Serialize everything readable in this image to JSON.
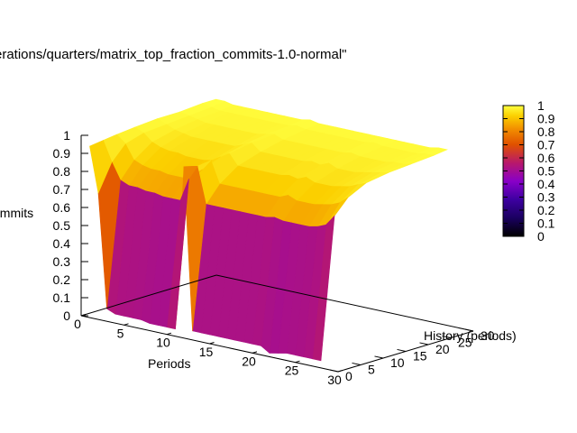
{
  "chart_data": {
    "type": "surface3d",
    "title": "erations/quarters/matrix_top_fraction_commits-1.0-normal\"",
    "xlabel": "Periods",
    "ylabel": "History (periods)",
    "zlabel": "ommits",
    "xlim": [
      0,
      30
    ],
    "ylim": [
      0,
      30
    ],
    "zlim": [
      0,
      1
    ],
    "x_ticks": [
      "0",
      "5",
      "10",
      "15",
      "20",
      "25",
      "30"
    ],
    "y_ticks": [
      "0",
      "5",
      "10",
      "15",
      "20",
      "25",
      "30"
    ],
    "z_ticks": [
      "0",
      "0.1",
      "0.2",
      "0.3",
      "0.4",
      "0.5",
      "0.6",
      "0.7",
      "0.8",
      "0.9",
      "1"
    ],
    "colorbar_ticks": [
      "0",
      "0.1",
      "0.2",
      "0.3",
      "0.4",
      "0.5",
      "0.6",
      "0.7",
      "0.8",
      "0.9",
      "1"
    ],
    "colorbar_range": [
      0,
      1
    ],
    "palette": [
      "#000000",
      "#3d00a0",
      "#8800c8",
      "#b8186c",
      "#e05000",
      "#f28e00",
      "#fbd000",
      "#ffff40"
    ],
    "grid": false,
    "series": [
      {
        "name": "",
        "history": 0,
        "x": [
          1,
          2,
          3,
          4,
          5,
          6,
          7,
          8,
          9,
          10,
          11,
          12,
          13,
          14,
          15,
          16,
          17,
          18,
          19,
          20,
          21,
          22,
          23,
          24,
          25,
          26,
          27,
          28
        ],
        "values": [
          0.95,
          0.7,
          0.07,
          0.05,
          0.05,
          0.05,
          0.05,
          0.04,
          0.04,
          0.04,
          0.04,
          0.95,
          0.05,
          0.05,
          0.05,
          0.05,
          0.05,
          0.05,
          0.05,
          0.05,
          0.05,
          0.02,
          0.03,
          0.04,
          0.04,
          0.04,
          0.04,
          0.04
        ]
      },
      {
        "name": "",
        "history": 3,
        "x": [
          1,
          2,
          3,
          4,
          5,
          6,
          7,
          8,
          9,
          10,
          11,
          12,
          13,
          14,
          15,
          16,
          17,
          18,
          19,
          20,
          21,
          22,
          23,
          24,
          25,
          26,
          27,
          28
        ],
        "values": [
          0.96,
          0.85,
          0.76,
          0.74,
          0.74,
          0.73,
          0.73,
          0.72,
          0.72,
          0.72,
          0.85,
          0.93,
          0.73,
          0.73,
          0.73,
          0.73,
          0.73,
          0.73,
          0.73,
          0.73,
          0.74,
          0.73,
          0.73,
          0.73,
          0.73,
          0.74,
          0.76,
          0.82
        ]
      },
      {
        "name": "",
        "history": 6,
        "x": [
          1,
          2,
          3,
          4,
          5,
          6,
          7,
          8,
          9,
          10,
          11,
          12,
          13,
          14,
          15,
          16,
          17,
          18,
          19,
          20,
          21,
          22,
          23,
          24,
          25,
          26,
          27,
          28
        ],
        "values": [
          0.97,
          0.93,
          0.85,
          0.83,
          0.82,
          0.82,
          0.81,
          0.81,
          0.81,
          0.82,
          0.88,
          0.94,
          0.82,
          0.82,
          0.82,
          0.82,
          0.82,
          0.82,
          0.82,
          0.82,
          0.84,
          0.82,
          0.82,
          0.82,
          0.83,
          0.84,
          0.86,
          0.9
        ]
      },
      {
        "name": "",
        "history": 10,
        "x": [
          1,
          2,
          3,
          4,
          5,
          6,
          7,
          8,
          9,
          10,
          11,
          12,
          13,
          14,
          15,
          16,
          17,
          18,
          19,
          20,
          21,
          22,
          23,
          24,
          25,
          26,
          27,
          28
        ],
        "values": [
          0.98,
          0.96,
          0.92,
          0.9,
          0.89,
          0.89,
          0.88,
          0.88,
          0.88,
          0.89,
          0.92,
          0.95,
          0.89,
          0.89,
          0.89,
          0.89,
          0.89,
          0.89,
          0.9,
          0.89,
          0.91,
          0.89,
          0.89,
          0.89,
          0.9,
          0.91,
          0.93,
          0.95
        ]
      },
      {
        "name": "",
        "history": 15,
        "x": [
          1,
          2,
          3,
          4,
          5,
          6,
          7,
          8,
          9,
          10,
          11,
          12,
          13,
          14,
          15,
          16,
          17,
          18,
          19,
          20,
          21,
          22,
          23,
          24,
          25,
          26,
          27,
          28
        ],
        "values": [
          0.99,
          0.97,
          0.95,
          0.94,
          0.93,
          0.93,
          0.93,
          0.93,
          0.93,
          0.93,
          0.95,
          0.97,
          0.93,
          0.93,
          0.93,
          0.93,
          0.93,
          0.93,
          0.94,
          0.93,
          0.95,
          0.93,
          0.93,
          0.93,
          0.94,
          0.95,
          0.96,
          0.97
        ]
      },
      {
        "name": "",
        "history": 20,
        "x": [
          1,
          2,
          3,
          4,
          5,
          6,
          7,
          8,
          9,
          10,
          11,
          12,
          13,
          14,
          15,
          16,
          17,
          18,
          19,
          20,
          21,
          22,
          23,
          24,
          25,
          26,
          27,
          28
        ],
        "values": [
          0.99,
          0.98,
          0.97,
          0.96,
          0.96,
          0.96,
          0.96,
          0.96,
          0.96,
          0.96,
          0.97,
          0.98,
          0.96,
          0.96,
          0.96,
          0.96,
          0.96,
          0.96,
          0.96,
          0.96,
          0.97,
          0.96,
          0.96,
          0.96,
          0.96,
          0.97,
          0.97,
          0.98
        ]
      },
      {
        "name": "",
        "history": 25,
        "x": [
          1,
          2,
          3,
          4,
          5,
          6,
          7,
          8,
          9,
          10,
          11,
          12,
          13,
          14,
          15,
          16,
          17,
          18,
          19,
          20,
          21,
          22,
          23,
          24,
          25,
          26,
          27,
          28
        ],
        "values": [
          1.0,
          0.99,
          0.98,
          0.98,
          0.98,
          0.98,
          0.98,
          0.98,
          0.98,
          0.98,
          0.98,
          0.99,
          0.98,
          0.98,
          0.98,
          0.98,
          0.98,
          0.98,
          0.98,
          0.98,
          0.99,
          0.98,
          0.98,
          0.98,
          0.98,
          0.98,
          0.99,
          0.99
        ]
      },
      {
        "name": "",
        "history": 28,
        "x": [
          1,
          2,
          3,
          4,
          5,
          6,
          7,
          8,
          9,
          10,
          11,
          12,
          13,
          14,
          15,
          16,
          17,
          18,
          19,
          20,
          21,
          22,
          23,
          24,
          25,
          26,
          27,
          28
        ],
        "values": [
          1.0,
          1.0,
          0.99,
          0.99,
          0.99,
          0.99,
          0.99,
          0.99,
          0.99,
          0.99,
          0.99,
          1.0,
          0.99,
          0.99,
          0.99,
          0.99,
          0.99,
          0.99,
          0.99,
          0.99,
          0.99,
          0.99,
          0.99,
          0.99,
          0.99,
          0.99,
          1.0,
          1.0
        ]
      }
    ]
  }
}
